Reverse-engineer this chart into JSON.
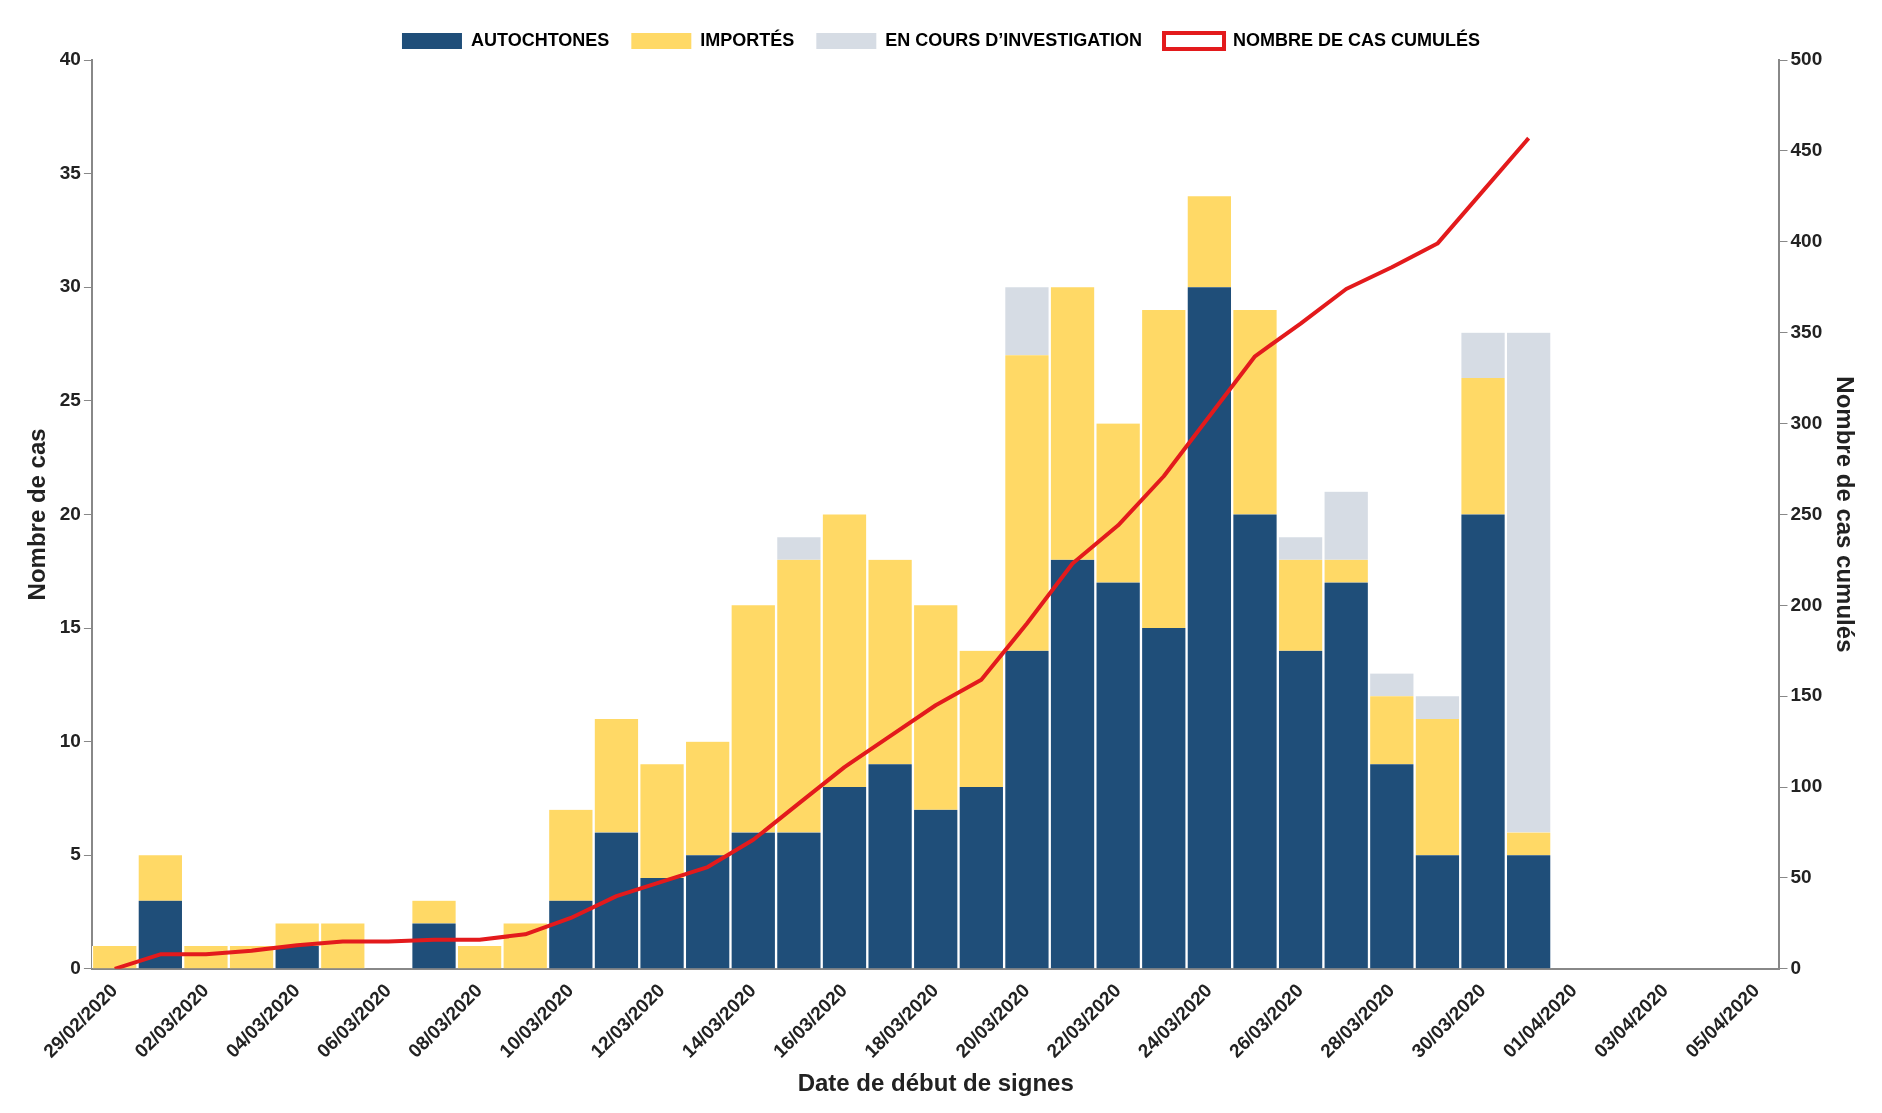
{
  "chart_data": {
    "type": "bar",
    "stacked": true,
    "xlabel": "Date de début de signes",
    "ylabel": "Nombre de cas",
    "y2label": "Nombre de cas cumulés",
    "categories": [
      "29/02/2020",
      null,
      "02/03/2020",
      null,
      "04/03/2020",
      null,
      "06/03/2020",
      null,
      "08/03/2020",
      null,
      "10/03/2020",
      null,
      "12/03/2020",
      null,
      "14/03/2020",
      null,
      "16/03/2020",
      null,
      "18/03/2020",
      null,
      "20/03/2020",
      null,
      "22/03/2020",
      null,
      "24/03/2020",
      null,
      "26/03/2020",
      null,
      "28/03/2020",
      null,
      "30/03/2020",
      null,
      "01/04/2020",
      null,
      "03/04/2020",
      null,
      "05/04/2020"
    ],
    "series": [
      {
        "name": "AUTOCHTONES",
        "color": "#1f4e79",
        "values": [
          0,
          3,
          0,
          0,
          1,
          0,
          0,
          2,
          0,
          0,
          3,
          6,
          4,
          5,
          6,
          6,
          8,
          9,
          7,
          8,
          14,
          18,
          17,
          15,
          30,
          20,
          14,
          17,
          9,
          5,
          20,
          5,
          null,
          null,
          null,
          null,
          null
        ]
      },
      {
        "name": "IMPORTÉS",
        "color": "#ffd966",
        "values": [
          1,
          2,
          1,
          1,
          1,
          2,
          0,
          1,
          1,
          2,
          4,
          5,
          5,
          5,
          10,
          12,
          12,
          9,
          9,
          6,
          13,
          12,
          7,
          14,
          4,
          9,
          4,
          1,
          3,
          6,
          6,
          1,
          null,
          null,
          null,
          null,
          null
        ]
      },
      {
        "name": "EN COURS D’INVESTIGATION",
        "color": "#d6dce4",
        "values": [
          0,
          0,
          0,
          0,
          0,
          0,
          0,
          0,
          0,
          0,
          0,
          0,
          0,
          0,
          0,
          1,
          0,
          0,
          0,
          0,
          3,
          0,
          0,
          0,
          0,
          0,
          1,
          3,
          1,
          1,
          2,
          22,
          null,
          null,
          null,
          null,
          null
        ]
      },
      {
        "name": "NOMBRE DE CAS CUMULÉS",
        "type": "line",
        "axis": "y2",
        "color": "#e31a1c",
        "values": [
          0,
          8,
          8,
          10,
          13,
          15,
          15,
          16,
          16,
          19,
          28,
          40,
          48,
          56,
          71,
          91,
          111,
          128,
          145,
          159,
          190,
          223,
          244,
          271,
          304,
          337,
          355,
          374,
          386,
          399,
          428,
          457,
          null,
          null,
          null,
          null,
          null
        ]
      }
    ],
    "ylim": [
      0,
      40
    ],
    "yticks": [
      0,
      5,
      10,
      15,
      20,
      25,
      30,
      35,
      40
    ],
    "y2lim": [
      0,
      500
    ],
    "y2ticks": [
      0,
      50,
      100,
      150,
      200,
      250,
      300,
      350,
      400,
      450,
      500
    ],
    "grid": false,
    "legend": "top",
    "marker": "none"
  }
}
